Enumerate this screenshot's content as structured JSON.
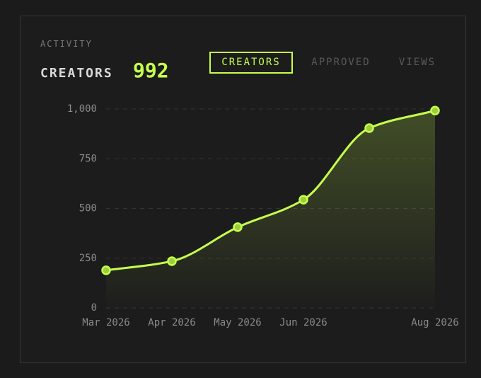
{
  "header": {
    "label": "ACTIVITY",
    "metric": "CREATORS",
    "value": "992"
  },
  "tabs": [
    "CREATORS",
    "APPROVED",
    "VIEWS"
  ],
  "active_tab": 0,
  "chart_data": {
    "type": "line",
    "categories": [
      "Mar 2026",
      "Apr 2026",
      "May 2026",
      "Jun 2026",
      null,
      "Aug 2026"
    ],
    "values": [
      189,
      235,
      406,
      544,
      904,
      992
    ],
    "color": "#c6ff4d",
    "area": true,
    "ylim": [
      0,
      1000
    ],
    "yticks": [
      0,
      250,
      500,
      750,
      {
        "value": 1000,
        "label": "1,000"
      }
    ],
    "grid": true
  }
}
